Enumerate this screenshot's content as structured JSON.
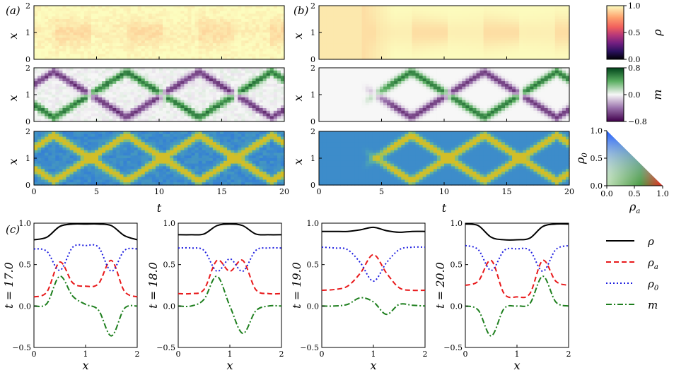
{
  "panel_labels": [
    "(a)",
    "(b)",
    "(c)"
  ],
  "chart_data": [
    {
      "type": "heatmap",
      "panel": "(a)",
      "rows": [
        "ρ",
        "m",
        "(ρa, ρ0)"
      ],
      "xlabel": "t",
      "ylabel": "x",
      "xlim": [
        0,
        20
      ],
      "ylim": [
        0,
        2
      ],
      "xticks": [
        "0",
        "5",
        "10",
        "15",
        "20"
      ],
      "yticks": [
        "0",
        "1",
        "2"
      ],
      "noisy": true
    },
    {
      "type": "heatmap",
      "panel": "(b)",
      "rows": [
        "ρ",
        "m",
        "(ρa, ρ0)"
      ],
      "xlabel": "t",
      "ylabel": "x",
      "xlim": [
        0,
        20
      ],
      "ylim": [
        0,
        2
      ],
      "xticks": [
        "0",
        "5",
        "10",
        "15",
        "20"
      ],
      "yticks": [
        "0",
        "1",
        "2"
      ],
      "noisy": false
    },
    {
      "type": "line",
      "panel": "(c)",
      "xlabel": "x",
      "xlim": [
        0,
        2
      ],
      "ylim": [
        -0.5,
        1.0
      ],
      "xticks": [
        "0",
        "1",
        "2"
      ],
      "yticks": [
        "−0.5",
        "0.0",
        "0.5",
        "1.0"
      ],
      "subplots": [
        {
          "ylabel": "t = 17.0",
          "x": [
            0,
            0.25,
            0.5,
            0.75,
            1.0,
            1.25,
            1.5,
            1.75,
            2.0
          ],
          "series": [
            {
              "name": "ρ",
              "values": [
                0.8,
                0.83,
                0.96,
                0.99,
                0.99,
                0.99,
                0.97,
                0.85,
                0.8
              ]
            },
            {
              "name": "ρa",
              "values": [
                0.11,
                0.17,
                0.53,
                0.28,
                0.24,
                0.27,
                0.55,
                0.18,
                0.11
              ]
            },
            {
              "name": "ρ0",
              "values": [
                0.69,
                0.66,
                0.43,
                0.71,
                0.73,
                0.71,
                0.42,
                0.67,
                0.69
              ]
            },
            {
              "name": "m",
              "values": [
                0.0,
                0.03,
                0.36,
                0.12,
                0.02,
                -0.05,
                -0.36,
                -0.03,
                0.0
              ]
            }
          ]
        },
        {
          "ylabel": "t = 18.0",
          "x": [
            0,
            0.25,
            0.5,
            0.75,
            1.0,
            1.25,
            1.5,
            1.75,
            2.0
          ],
          "series": [
            {
              "name": "ρ",
              "values": [
                0.86,
                0.86,
                0.87,
                0.97,
                0.99,
                0.97,
                0.87,
                0.86,
                0.86
              ]
            },
            {
              "name": "ρa",
              "values": [
                0.15,
                0.15,
                0.2,
                0.55,
                0.42,
                0.55,
                0.2,
                0.15,
                0.15
              ]
            },
            {
              "name": "ρ0",
              "values": [
                0.7,
                0.7,
                0.67,
                0.42,
                0.57,
                0.42,
                0.67,
                0.7,
                0.7
              ]
            },
            {
              "name": "m",
              "values": [
                0.0,
                0.0,
                0.08,
                0.36,
                0.0,
                -0.33,
                -0.06,
                0.0,
                0.0
              ]
            }
          ]
        },
        {
          "ylabel": "t = 19.0",
          "x": [
            0,
            0.25,
            0.5,
            0.75,
            1.0,
            1.25,
            1.5,
            1.75,
            2.0
          ],
          "series": [
            {
              "name": "ρ",
              "values": [
                0.9,
                0.9,
                0.9,
                0.92,
                0.95,
                0.91,
                0.89,
                0.9,
                0.9
              ]
            },
            {
              "name": "ρa",
              "values": [
                0.19,
                0.2,
                0.24,
                0.4,
                0.62,
                0.4,
                0.22,
                0.19,
                0.19
              ]
            },
            {
              "name": "ρ0",
              "values": [
                0.71,
                0.7,
                0.68,
                0.52,
                0.3,
                0.52,
                0.68,
                0.71,
                0.71
              ]
            },
            {
              "name": "m",
              "values": [
                0.0,
                0.0,
                0.02,
                0.1,
                0.05,
                -0.1,
                0.02,
                0.01,
                0.0
              ]
            }
          ]
        },
        {
          "ylabel": "t = 20.0",
          "x": [
            0,
            0.25,
            0.5,
            0.75,
            1.0,
            1.25,
            1.5,
            1.75,
            2.0
          ],
          "series": [
            {
              "name": "ρ",
              "values": [
                0.99,
                0.97,
                0.83,
                0.8,
                0.8,
                0.82,
                0.96,
                0.99,
                0.99
              ]
            },
            {
              "name": "ρa",
              "values": [
                0.25,
                0.3,
                0.55,
                0.15,
                0.11,
                0.15,
                0.55,
                0.3,
                0.25
              ]
            },
            {
              "name": "ρ0",
              "values": [
                0.73,
                0.68,
                0.43,
                0.67,
                0.69,
                0.67,
                0.42,
                0.68,
                0.73
              ]
            },
            {
              "name": "m",
              "values": [
                0.0,
                -0.05,
                -0.36,
                -0.03,
                0.0,
                0.03,
                0.36,
                0.05,
                0.0
              ]
            }
          ]
        }
      ]
    }
  ],
  "colorbars": [
    {
      "label": "ρ",
      "ticks": [
        "0.0",
        "0.5",
        "1.0"
      ],
      "cmap": "magma-like"
    },
    {
      "label": "m",
      "ticks": [
        "−0.8",
        "0.0",
        "0.8"
      ],
      "cmap": "purple-green"
    }
  ],
  "triangle_legend": {
    "xlabel": "ρ",
    "xsub": "a",
    "ylabel": "ρ",
    "ysub": "0",
    "xticks": [
      "0.0",
      "0.5",
      "1.0"
    ],
    "yticks": [
      "0.0",
      "0.5",
      "1.0"
    ]
  },
  "legend": [
    {
      "label": "ρ",
      "sub": "",
      "color": "#000000",
      "dash": ""
    },
    {
      "label": "ρ",
      "sub": "a",
      "color": "#e8191b",
      "dash": "7,4"
    },
    {
      "label": "ρ",
      "sub": "0",
      "color": "#1f1fe0",
      "dash": "2,3"
    },
    {
      "label": "m",
      "sub": "",
      "color": "#1e7f1e",
      "dash": "8,3,2,3"
    }
  ]
}
